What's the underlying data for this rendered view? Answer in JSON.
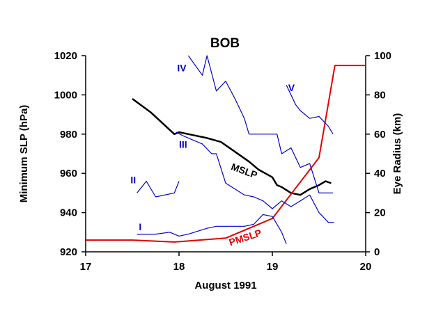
{
  "chart_data": {
    "type": "line",
    "title": "BOB",
    "xlabel": "August 1991",
    "ylabel_left": "Minimum SLP (hPa)",
    "ylabel_right": "Eye Radius (km)",
    "xlim": [
      17,
      20
    ],
    "ylim_left": [
      920,
      1020
    ],
    "ylim_right": [
      0,
      100
    ],
    "x_ticks": [
      "17",
      "18",
      "19",
      "20"
    ],
    "y_left_ticks": [
      "920",
      "940",
      "960",
      "980",
      "1000",
      "1020"
    ],
    "y_right_ticks": [
      "0",
      "20",
      "40",
      "60",
      "80",
      "100"
    ],
    "grid": false,
    "colors": {
      "pressure": "#000000",
      "pmslp": "#e00000",
      "eye": "#0000cc",
      "text": "#000000"
    },
    "series": [
      {
        "name": "MSLP",
        "axis": "left",
        "color": "#000000",
        "points": [
          [
            17.5,
            998
          ],
          [
            17.7,
            991
          ],
          [
            17.95,
            980
          ],
          [
            18.0,
            981
          ],
          [
            18.1,
            980
          ],
          [
            18.3,
            978
          ],
          [
            18.45,
            976
          ],
          [
            18.6,
            971
          ],
          [
            18.75,
            966
          ],
          [
            18.85,
            962
          ],
          [
            19.0,
            958
          ],
          [
            19.05,
            954
          ],
          [
            19.1,
            953
          ],
          [
            19.2,
            950
          ],
          [
            19.3,
            949
          ],
          [
            19.4,
            952
          ],
          [
            19.5,
            954
          ],
          [
            19.57,
            956
          ],
          [
            19.63,
            955
          ]
        ]
      },
      {
        "name": "PMSLP",
        "axis": "left",
        "color": "#e00000",
        "points": [
          [
            17.0,
            926
          ],
          [
            17.5,
            926
          ],
          [
            17.95,
            925
          ],
          [
            18.5,
            927
          ],
          [
            19.0,
            937
          ],
          [
            19.5,
            968
          ],
          [
            19.67,
            1015
          ],
          [
            20.0,
            1015
          ]
        ]
      },
      {
        "name": "I",
        "axis": "right",
        "color": "#0000cc",
        "points": [
          [
            17.55,
            9
          ],
          [
            17.75,
            9
          ],
          [
            17.9,
            10
          ],
          [
            18.0,
            8
          ],
          [
            18.1,
            9
          ],
          [
            18.3,
            12
          ],
          [
            18.4,
            13
          ],
          [
            18.7,
            13
          ],
          [
            18.8,
            14
          ],
          [
            18.9,
            19
          ],
          [
            19.0,
            18
          ],
          [
            19.1,
            10
          ],
          [
            19.15,
            4
          ]
        ]
      },
      {
        "name": "II",
        "axis": "right",
        "color": "#0000cc",
        "points": [
          [
            17.55,
            30
          ],
          [
            17.65,
            36
          ],
          [
            17.75,
            28
          ],
          [
            17.95,
            30
          ],
          [
            18.0,
            36
          ]
        ]
      },
      {
        "name": "III",
        "axis": "right",
        "color": "#0000cc",
        "points": [
          [
            17.97,
            61
          ],
          [
            18.05,
            59
          ],
          [
            18.15,
            57
          ],
          [
            18.25,
            55
          ],
          [
            18.35,
            50
          ],
          [
            18.4,
            50
          ],
          [
            18.5,
            35
          ],
          [
            18.6,
            32
          ],
          [
            18.7,
            29
          ],
          [
            18.8,
            28
          ],
          [
            18.9,
            26
          ],
          [
            19.0,
            22
          ],
          [
            19.1,
            26
          ],
          [
            19.2,
            23
          ],
          [
            19.3,
            26
          ],
          [
            19.4,
            29
          ],
          [
            19.5,
            20
          ],
          [
            19.6,
            15
          ],
          [
            19.66,
            15
          ]
        ]
      },
      {
        "name": "IV",
        "axis": "right",
        "color": "#0000cc",
        "points": [
          [
            18.1,
            100
          ],
          [
            18.25,
            90
          ],
          [
            18.3,
            100
          ],
          [
            18.4,
            82
          ],
          [
            18.5,
            87
          ],
          [
            18.6,
            78
          ],
          [
            18.7,
            68
          ],
          [
            18.75,
            60
          ],
          [
            18.9,
            60
          ],
          [
            19.05,
            60
          ],
          [
            19.1,
            50
          ],
          [
            19.2,
            53
          ],
          [
            19.3,
            43
          ],
          [
            19.4,
            45
          ],
          [
            19.5,
            30
          ],
          [
            19.6,
            30
          ],
          [
            19.65,
            30
          ]
        ]
      },
      {
        "name": "V",
        "axis": "right",
        "color": "#0000cc",
        "points": [
          [
            19.15,
            85
          ],
          [
            19.25,
            75
          ],
          [
            19.3,
            72
          ],
          [
            19.4,
            68
          ],
          [
            19.5,
            69
          ],
          [
            19.6,
            64
          ],
          [
            19.65,
            60
          ]
        ]
      }
    ],
    "labels": [
      {
        "text": "MSLP",
        "color": "#000000",
        "x": 18.55,
        "y": 962,
        "axis": "left",
        "rotate": 20
      },
      {
        "text": "PMSLP",
        "color": "#e00000",
        "x": 18.55,
        "y": 923,
        "axis": "left",
        "rotate": -18
      },
      {
        "text": "I",
        "color": "#0000cc",
        "x": 17.57,
        "y": 11,
        "axis": "right",
        "rotate": 0
      },
      {
        "text": "II",
        "color": "#0000cc",
        "x": 17.48,
        "y": 35,
        "axis": "right",
        "rotate": 0
      },
      {
        "text": "III",
        "color": "#0000cc",
        "x": 18.0,
        "y": 53,
        "axis": "right",
        "rotate": 0
      },
      {
        "text": "IV",
        "color": "#0000cc",
        "x": 17.98,
        "y": 92,
        "axis": "right",
        "rotate": 0
      },
      {
        "text": "V",
        "color": "#0000cc",
        "x": 19.17,
        "y": 82,
        "axis": "right",
        "rotate": 0
      }
    ]
  }
}
